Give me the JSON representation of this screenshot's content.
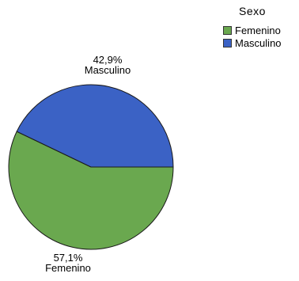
{
  "chart_data": {
    "type": "pie",
    "legend_title": "Sexo",
    "legend_position": "top-right",
    "start": "east",
    "direction": "clockwise",
    "series": [
      {
        "name": "Femenino",
        "value": 57.1,
        "label": "57,1%",
        "color": "#6aa84f"
      },
      {
        "name": "Masculino",
        "value": 42.9,
        "label": "42,9%",
        "color": "#3b62c5"
      }
    ]
  }
}
